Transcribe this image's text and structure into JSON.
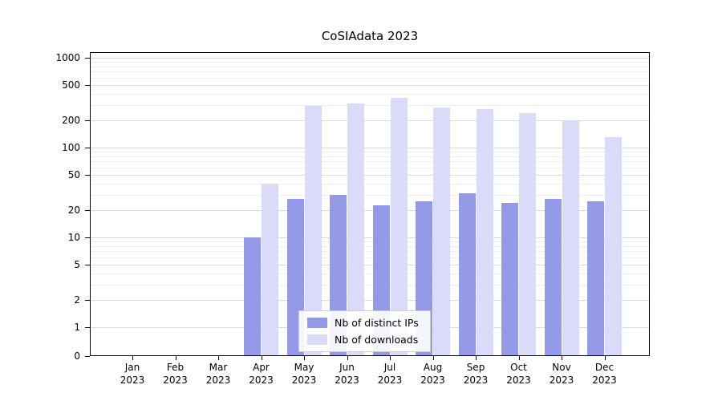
{
  "chart_data": {
    "type": "bar",
    "title": "CoSIAdata 2023",
    "x_year": "2023",
    "months": [
      "Jan",
      "Feb",
      "Mar",
      "Apr",
      "May",
      "Jun",
      "Jul",
      "Aug",
      "Sep",
      "Oct",
      "Nov",
      "Dec"
    ],
    "series": [
      {
        "name": "Nb of distinct IPs",
        "color": "#959ae8",
        "values": [
          0,
          0,
          0,
          10,
          27,
          30,
          23,
          25,
          31,
          24,
          27,
          25
        ]
      },
      {
        "name": "Nb of downloads",
        "color": "#d9dbf8",
        "values": [
          0,
          0,
          0,
          40,
          290,
          310,
          360,
          280,
          270,
          240,
          200,
          130
        ]
      }
    ],
    "y_scale": "symlog",
    "y_ticks": [
      0,
      1,
      2,
      5,
      10,
      20,
      50,
      100,
      200,
      500,
      1000
    ],
    "y_minor_ticks": [
      3,
      4,
      6,
      7,
      8,
      9,
      30,
      40,
      60,
      70,
      80,
      90,
      300,
      400,
      600,
      700,
      800,
      900
    ],
    "ylim": [
      0,
      1150
    ],
    "grid": true,
    "legend_position": "lower center"
  }
}
